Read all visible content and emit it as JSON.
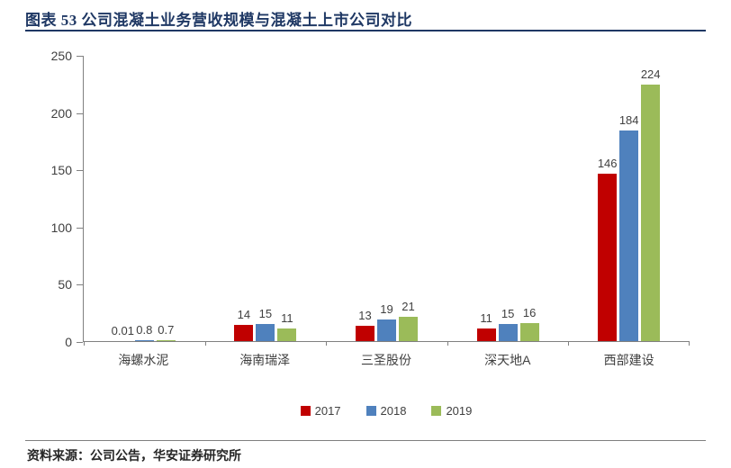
{
  "title": "图表 53  公司混凝土业务营收规模与混凝土上市公司对比",
  "footer": {
    "source": "资料来源：公司公告，华安证券研究所"
  },
  "colors": {
    "title_accent": "#1f3864",
    "axis": "#808080",
    "text": "#404040"
  },
  "chart_data": {
    "type": "bar",
    "title": "公司混凝土业务营收规模与混凝土上市公司对比",
    "categories": [
      "海螺水泥",
      "海南瑞泽",
      "三圣股份",
      "深天地A",
      "西部建设"
    ],
    "series": [
      {
        "name": "2017",
        "color": "#c00000",
        "values": [
          0.01,
          14,
          13,
          11,
          146
        ]
      },
      {
        "name": "2018",
        "color": "#4f81bd",
        "values": [
          0.8,
          15,
          19,
          15,
          184
        ]
      },
      {
        "name": "2019",
        "color": "#9bbb59",
        "values": [
          0.7,
          11,
          21,
          16,
          224
        ]
      }
    ],
    "xlabel": "",
    "ylabel": "",
    "ylim": [
      0,
      250
    ],
    "yticks": [
      0,
      50,
      100,
      150,
      200,
      250
    ],
    "grid": false,
    "legend_position": "bottom"
  }
}
